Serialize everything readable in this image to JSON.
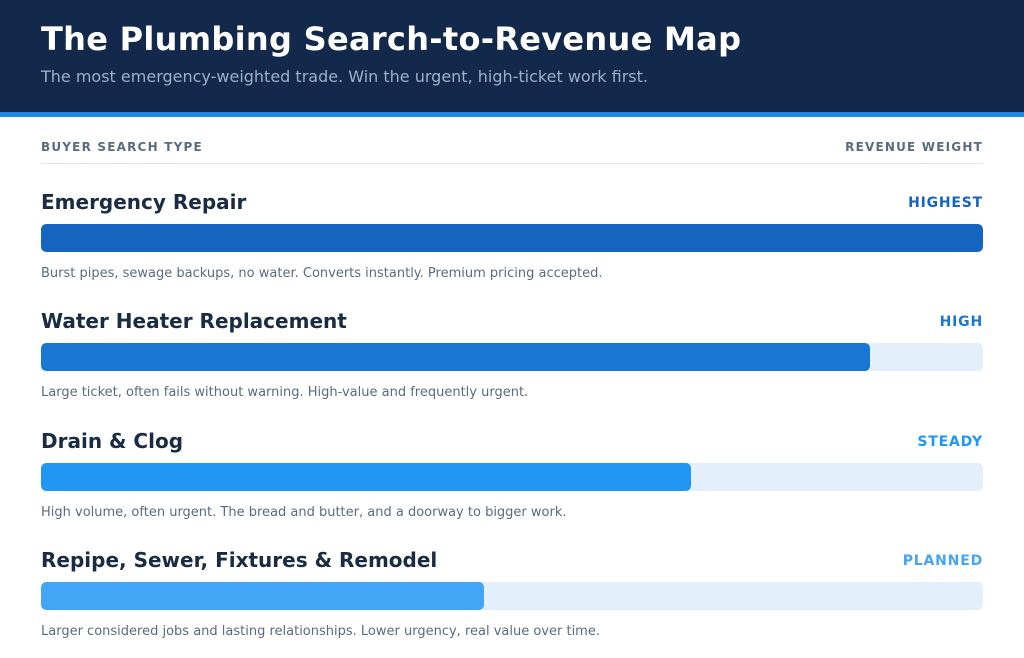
{
  "header": {
    "title": "The Plumbing Search-to-Revenue Map",
    "subtitle": "The most emergency-weighted trade. Win the urgent, high-ticket work first."
  },
  "columns": {
    "left": "BUYER SEARCH TYPE",
    "right": "REVENUE WEIGHT"
  },
  "chart_data": {
    "type": "bar",
    "orientation": "horizontal",
    "value_scale": "fraction of full bar (0-1), estimated from bar fill",
    "categories": [
      "Emergency Repair",
      "Water Heater Replacement",
      "Drain & Clog",
      "Repipe, Sewer, Fixtures & Remodel"
    ],
    "values": [
      1.0,
      0.88,
      0.69,
      0.47
    ],
    "weights": [
      "HIGHEST",
      "HIGH",
      "STEADY",
      "PLANNED"
    ],
    "descriptions": [
      "Burst pipes, sewage backups, no water. Converts instantly. Premium pricing accepted.",
      "Large ticket, often fails without warning. High-value and frequently urgent.",
      "High volume, often urgent. The bread and butter, and a doorway to bigger work.",
      "Larger considered jobs and lasting relationships. Lower urgency, real value over time."
    ],
    "bar_colors": [
      "#1565c0",
      "#1976d2",
      "#2196f3",
      "#42a5f5"
    ],
    "weight_colors": [
      "#1565c0",
      "#1976d2",
      "#2196f3",
      "#42a5f5"
    ],
    "track_color": "#e3f0fb",
    "ylim": [
      0,
      1
    ],
    "grid": false,
    "legend": "none"
  }
}
